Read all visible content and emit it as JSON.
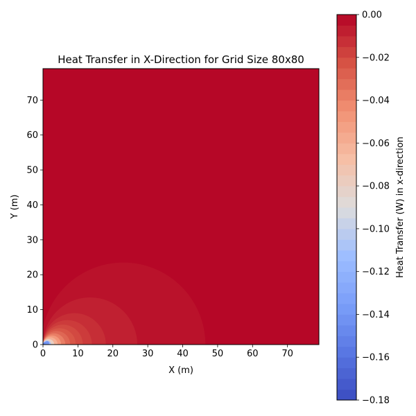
{
  "chart_data": {
    "type": "heatmap",
    "subtype": "filled-contour",
    "title": "Heat Transfer in X-Direction for Grid Size 80x80",
    "xlabel": "X (m)",
    "ylabel": "Y (m)",
    "xlim": [
      0,
      79
    ],
    "ylim": [
      0,
      79
    ],
    "xticks": [
      0,
      10,
      20,
      30,
      40,
      50,
      60,
      70
    ],
    "yticks": [
      0,
      10,
      20,
      30,
      40,
      50,
      60,
      70
    ],
    "grid": false,
    "colormap": "coolwarm",
    "colorbar": {
      "label": "Heat Transfer (W) in x-direction",
      "range": [
        -0.18,
        0.0
      ],
      "ticks": [
        0.0,
        -0.02,
        -0.04,
        -0.06,
        -0.08,
        -0.1,
        -0.12,
        -0.14,
        -0.16,
        -0.18
      ],
      "tick_labels": [
        "0.00",
        "−0.02",
        "−0.04",
        "−0.06",
        "−0.08",
        "−0.10",
        "−0.12",
        "−0.14",
        "−0.16",
        "−0.18"
      ],
      "levels": 36
    },
    "source_point": [
      0,
      0
    ],
    "contours": [
      {
        "center_x": 23,
        "radius": 23.5,
        "value": -0.004
      },
      {
        "center_x": 13.5,
        "radius": 13.5,
        "value": -0.008
      },
      {
        "center_x": 9,
        "radius": 9,
        "value": -0.012
      },
      {
        "center_x": 7,
        "radius": 7,
        "value": -0.016
      },
      {
        "center_x": 5.7,
        "radius": 5.7,
        "value": -0.02
      },
      {
        "center_x": 4.7,
        "radius": 4.7,
        "value": -0.024
      },
      {
        "center_x": 3.9,
        "radius": 3.9,
        "value": -0.03
      },
      {
        "center_x": 3.2,
        "radius": 3.2,
        "value": -0.038
      },
      {
        "center_x": 2.6,
        "radius": 2.6,
        "value": -0.048
      },
      {
        "center_x": 2.1,
        "radius": 2.1,
        "value": -0.06
      },
      {
        "center_x": 1.6,
        "radius": 1.6,
        "value": -0.08
      },
      {
        "center_x": 1.15,
        "radius": 1.15,
        "value": -0.11
      },
      {
        "center_x": 0.75,
        "radius": 0.75,
        "value": -0.15
      }
    ],
    "background_value": -0.001
  }
}
